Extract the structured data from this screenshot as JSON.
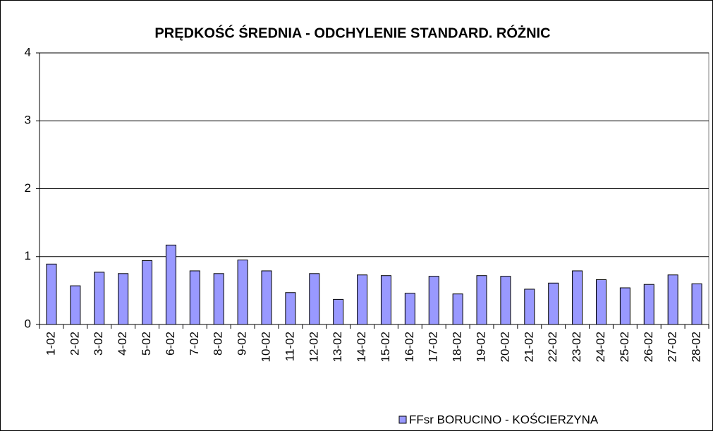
{
  "chart_data": {
    "type": "bar",
    "title": "PRĘDKOŚĆ ŚREDNIA - ODCHYLENIE STANDARD. RÓŻNIC",
    "categories": [
      "1-02",
      "2-02",
      "3-02",
      "4-02",
      "5-02",
      "6-02",
      "7-02",
      "8-02",
      "9-02",
      "10-02",
      "11-02",
      "12-02",
      "13-02",
      "14-02",
      "15-02",
      "16-02",
      "17-02",
      "18-02",
      "19-02",
      "20-02",
      "21-02",
      "22-02",
      "23-02",
      "24-02",
      "25-02",
      "26-02",
      "27-02",
      "28-02"
    ],
    "series": [
      {
        "name": "FFsr BORUCINO - KOŚCIERZYNA",
        "color": "#9999ff",
        "values": [
          0.89,
          0.57,
          0.77,
          0.75,
          0.94,
          1.17,
          0.79,
          0.75,
          0.95,
          0.79,
          0.47,
          0.75,
          0.37,
          0.73,
          0.72,
          0.46,
          0.71,
          0.45,
          0.72,
          0.71,
          0.52,
          0.61,
          0.79,
          0.66,
          0.54,
          0.59,
          0.73,
          0.6
        ]
      }
    ],
    "ylim": [
      0,
      4
    ],
    "yticks": [
      0,
      1,
      2,
      3,
      4
    ],
    "grid": true,
    "legend": "bottom"
  }
}
